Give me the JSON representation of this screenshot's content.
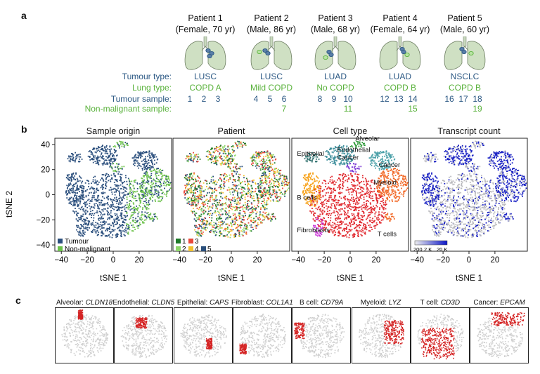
{
  "panel_a": {
    "letter": "a",
    "patients": [
      {
        "name": "Patient 1",
        "meta": "(Female, 70 yr)",
        "tumour_type": "LUSC",
        "lung_type": "COPD A",
        "tumour_samples": [
          "1",
          "2",
          "3"
        ],
        "nonmal_sample": ""
      },
      {
        "name": "Patient 2",
        "meta": "(Male, 86 yr)",
        "tumour_type": "LUSC",
        "lung_type": "Mild COPD",
        "tumour_samples": [
          "4",
          "5",
          "6"
        ],
        "nonmal_sample": "7"
      },
      {
        "name": "Patient 3",
        "meta": "(Male, 68 yr)",
        "tumour_type": "LUAD",
        "lung_type": "No COPD",
        "tumour_samples": [
          "8",
          "9",
          "10"
        ],
        "nonmal_sample": "11"
      },
      {
        "name": "Patient 4",
        "meta": "(Female, 64 yr)",
        "tumour_type": "LUAD",
        "lung_type": "COPD B",
        "tumour_samples": [
          "12",
          "13",
          "14"
        ],
        "nonmal_sample": "15"
      },
      {
        "name": "Patient 5",
        "meta": "(Male, 60 yr)",
        "tumour_type": "NSCLC",
        "lung_type": "COPD B",
        "tumour_samples": [
          "16",
          "17",
          "18"
        ],
        "nonmal_sample": "19"
      }
    ],
    "row_labels": {
      "tumour_type": "Tumour type:",
      "lung_type": "Lung type:",
      "tumour_sample": "Tumour sample:",
      "nonmal_sample": "Non-malignant sample:"
    },
    "colors": {
      "blue": "#2a5783",
      "green": "#5ab23c"
    }
  },
  "panel_b": {
    "letter": "b",
    "panels": [
      {
        "title": "Sample origin",
        "legend": [
          "Tumour",
          "Non-malignant"
        ]
      },
      {
        "title": "Patient",
        "legend": [
          "1",
          "2",
          "3",
          "4",
          "5"
        ]
      },
      {
        "title": "Cell type",
        "labels": [
          "Epithelial",
          "Alveolar",
          "Endothelial",
          "Cancer",
          "Cancer",
          "B cells",
          "Myeloid",
          "Fibroblasts",
          "T cells"
        ]
      },
      {
        "title": "Transcript count",
        "colorbar": [
          "200",
          "2 K",
          "20 K"
        ]
      }
    ],
    "xlabel": "tSNE 1",
    "ylabel": "tSNE 2",
    "xticks": [
      "-40",
      "-20",
      "0",
      "20"
    ],
    "yticks": [
      "40",
      "20",
      "0",
      "-20",
      "-40"
    ]
  },
  "panel_c": {
    "letter": "c",
    "markers": [
      {
        "cell": "Alveolar: ",
        "gene": "CLDN18"
      },
      {
        "cell": "Endothelial: ",
        "gene": "CLDN5"
      },
      {
        "cell": "Epithelial: ",
        "gene": "CAPS"
      },
      {
        "cell": "Fibroblast: ",
        "gene": "COL1A1"
      },
      {
        "cell": "B cell: ",
        "gene": "CD79A"
      },
      {
        "cell": "Myeloid: ",
        "gene": "LYZ"
      },
      {
        "cell": "T cell: ",
        "gene": "CD3D"
      },
      {
        "cell": "Cancer: ",
        "gene": "EPCAM"
      }
    ]
  }
}
